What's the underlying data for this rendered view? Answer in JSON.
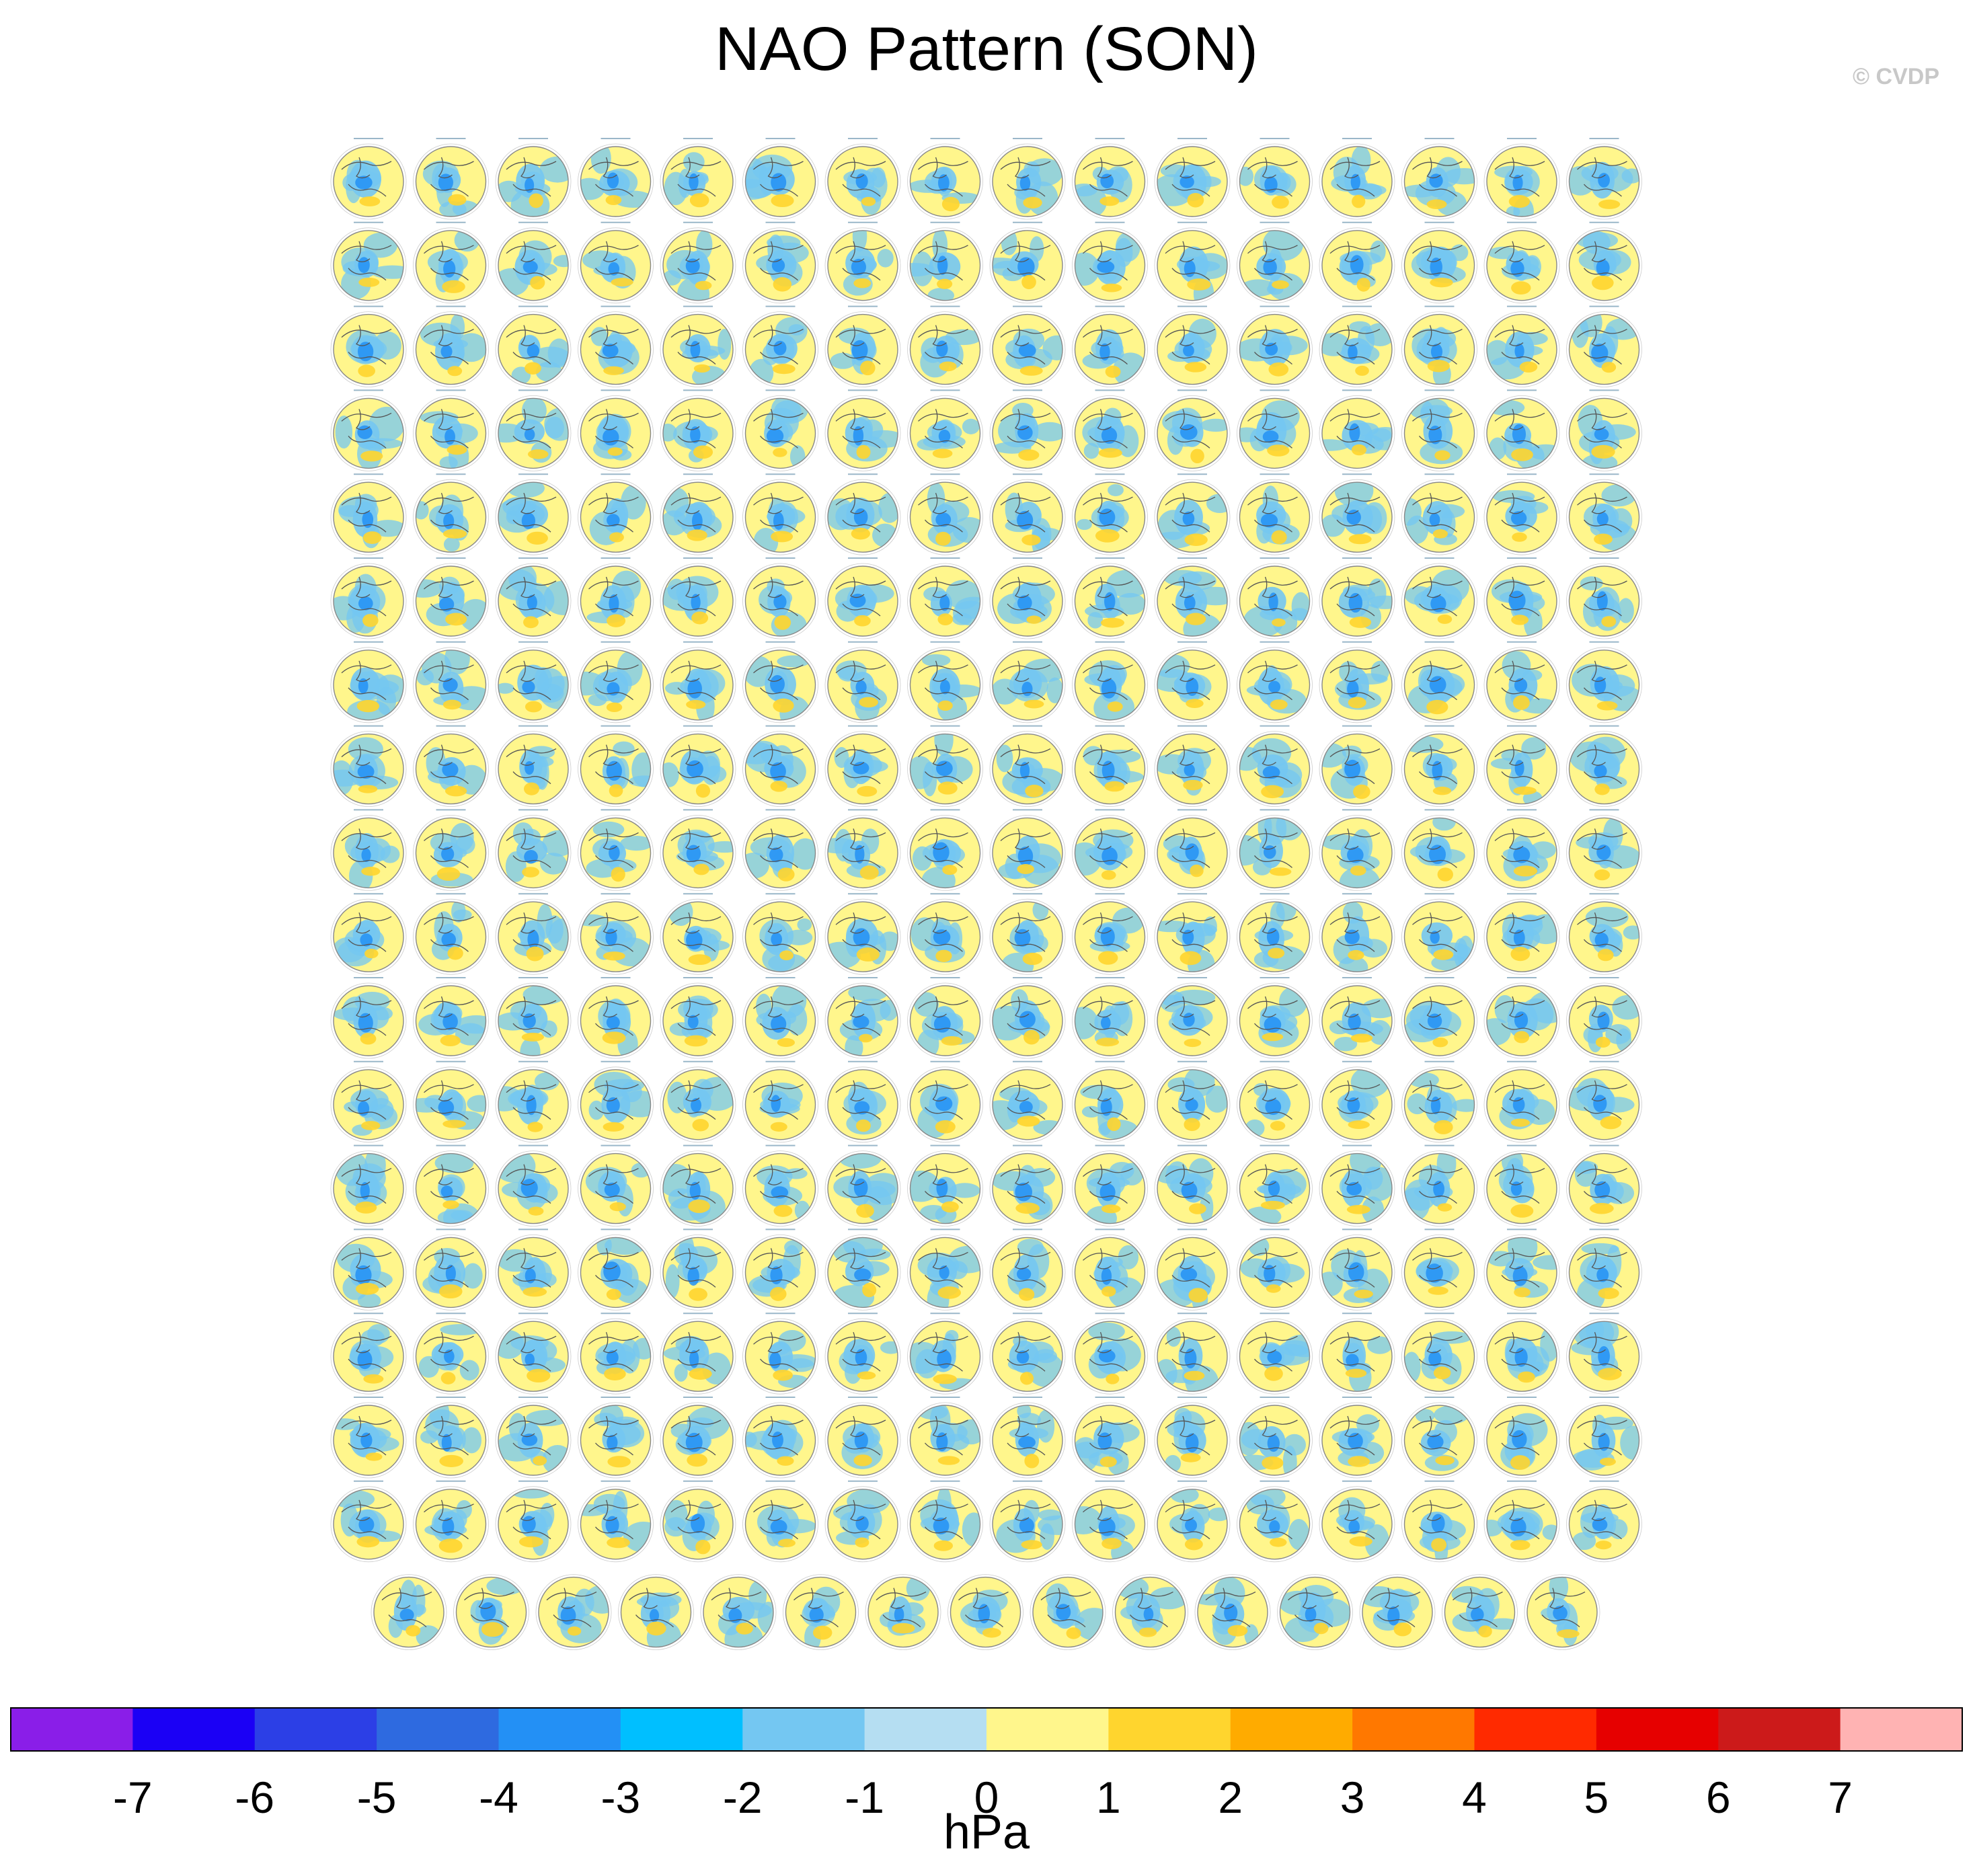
{
  "title": "NAO Pattern (SON)",
  "credit": "© CVDP",
  "colorbar": {
    "units": "hPa",
    "tick_labels": [
      "-7",
      "-6",
      "-5",
      "-4",
      "-3",
      "-2",
      "-1",
      "0",
      "1",
      "2",
      "3",
      "4",
      "5",
      "6",
      "7"
    ],
    "colors": [
      "#8a1ee8",
      "#1b00f5",
      "#2c3fe6",
      "#2e6ae0",
      "#2390f5",
      "#00bfff",
      "#74c7f2",
      "#b5def2",
      "#fff68c",
      "#ffd52e",
      "#ffab00",
      "#ff7800",
      "#ff2a00",
      "#e60000",
      "#cc1a1a",
      "#ffb3b3"
    ]
  },
  "map_panels": {
    "full_rows": 17,
    "columns_per_full_row": 16,
    "last_row_panels": 15,
    "ocean_color": "#fff68c",
    "negative_color": "#74c7f2",
    "strong_negative_color": "#2390f5",
    "positive_color": "#ffd52e",
    "coast_color": "#555555"
  }
}
